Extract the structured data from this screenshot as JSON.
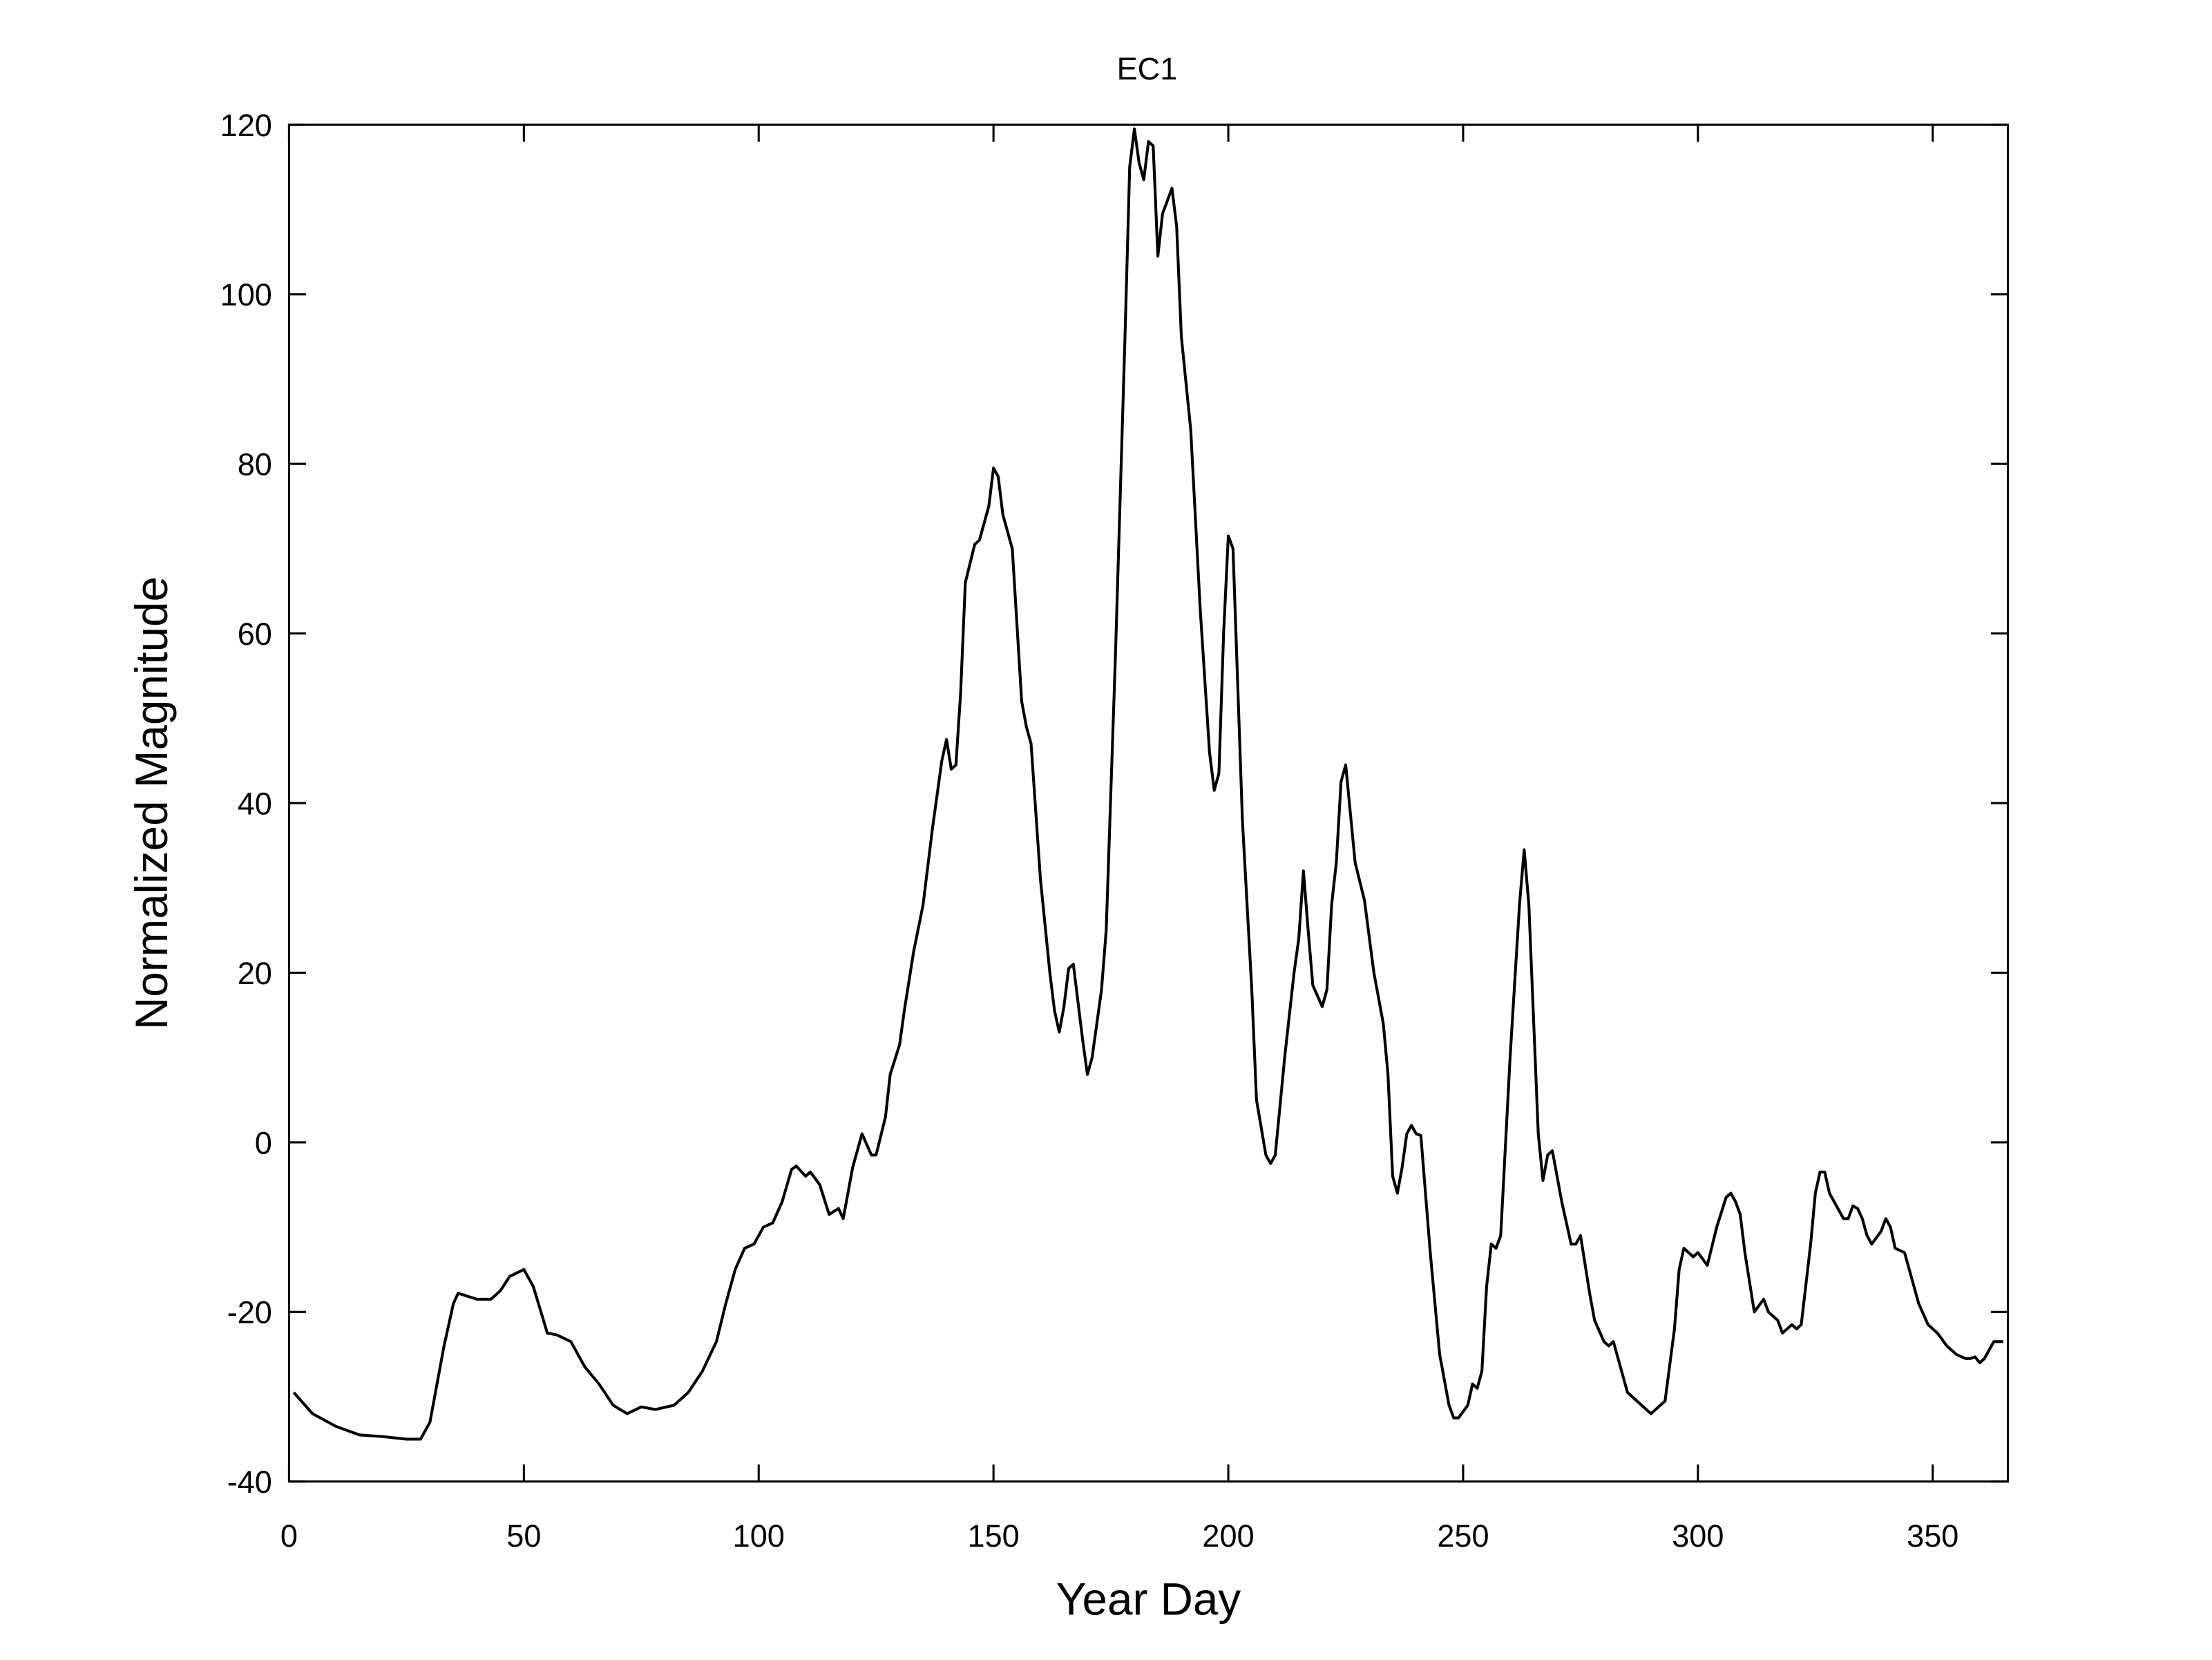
{
  "chart_data": {
    "type": "line",
    "title": "EC1",
    "x_label": "Year Day",
    "y_label": "Normalized Magnitude",
    "xlim": [
      0,
      366
    ],
    "ylim": [
      -40,
      120
    ],
    "xticks": [
      0,
      50,
      100,
      150,
      200,
      250,
      300,
      350
    ],
    "yticks": [
      -40,
      -20,
      0,
      20,
      40,
      60,
      80,
      100,
      120
    ],
    "x": [
      1,
      5,
      10,
      15,
      20,
      25,
      28,
      30,
      33,
      35,
      36,
      40,
      43,
      45,
      47,
      50,
      52,
      55,
      57,
      60,
      63,
      66,
      69,
      72,
      75,
      78,
      82,
      85,
      88,
      91,
      93,
      95,
      97,
      99,
      101,
      103,
      105,
      107,
      108,
      110,
      111,
      113,
      115,
      117,
      118,
      120,
      122,
      124,
      125,
      127,
      128,
      130,
      131,
      133,
      135,
      137,
      139,
      140,
      141,
      142,
      143,
      144,
      146,
      147,
      149,
      150,
      151,
      152,
      154,
      156,
      157,
      158,
      160,
      162,
      163,
      164,
      165,
      166,
      167,
      169,
      170,
      171,
      173,
      174,
      176,
      178,
      179,
      180,
      181,
      182,
      183,
      184,
      185,
      186,
      188,
      189,
      190,
      192,
      194,
      196,
      197,
      198,
      199,
      200,
      201,
      203,
      205,
      206,
      208,
      209,
      210,
      212,
      214,
      215,
      216,
      217,
      218,
      220,
      221,
      222,
      223,
      224,
      225,
      227,
      229,
      231,
      233,
      234,
      235,
      236,
      237,
      238,
      239,
      240,
      241,
      243,
      245,
      247,
      248,
      249,
      251,
      252,
      253,
      254,
      255,
      256,
      257,
      258,
      260,
      262,
      263,
      264,
      266,
      267,
      268,
      269,
      271,
      273,
      274,
      275,
      277,
      278,
      280,
      281,
      282,
      284,
      285,
      287,
      289,
      290,
      291,
      293,
      295,
      296,
      297,
      299,
      300,
      302,
      304,
      306,
      307,
      308,
      309,
      310,
      312,
      314,
      315,
      317,
      318,
      320,
      321,
      322,
      324,
      325,
      326,
      327,
      328,
      330,
      331,
      332,
      333,
      334,
      335,
      336,
      337,
      339,
      340,
      341,
      342,
      344,
      345,
      347,
      349,
      351,
      353,
      355,
      357,
      358,
      359,
      360,
      361,
      363,
      365
    ],
    "series": [
      {
        "color": "#000000",
        "values": [
          -29.5,
          -32,
          -33.5,
          -34.5,
          -34.7,
          -35,
          -35,
          -33,
          -24,
          -19,
          -17.8,
          -18.5,
          -18.5,
          -17.5,
          -15.8,
          -15,
          -17,
          -22.5,
          -22.7,
          -23.5,
          -26.5,
          -28.5,
          -31,
          -32,
          -31.2,
          -31.5,
          -31,
          -29.5,
          -27,
          -23.5,
          -19,
          -15,
          -12.5,
          -12,
          -10,
          -9.5,
          -7,
          -3.2,
          -2.8,
          -4,
          -3.5,
          -5,
          -8.5,
          -7.8,
          -9,
          -3,
          1,
          -1.5,
          -1.5,
          3,
          8,
          11.5,
          15.5,
          22.5,
          28,
          37,
          45,
          47.5,
          44,
          44.5,
          53,
          66,
          70.5,
          71,
          75,
          79.5,
          78.5,
          74,
          70,
          52,
          49,
          47,
          31,
          20,
          15.5,
          13,
          16,
          20.5,
          21,
          12,
          8,
          10,
          18,
          25,
          58,
          95,
          115,
          119.5,
          115.5,
          113.5,
          118,
          117.5,
          104.5,
          109.5,
          112.5,
          108,
          95,
          84,
          63,
          46,
          41.5,
          43.5,
          60,
          71.5,
          70,
          38,
          18,
          5,
          -1.5,
          -2.5,
          -1.5,
          10,
          20,
          24,
          32,
          25,
          18.5,
          16,
          18,
          28,
          33,
          42.5,
          44.5,
          33,
          28.5,
          20,
          14,
          8,
          -4,
          -6,
          -3,
          1,
          2,
          1,
          0.8,
          -13,
          -25,
          -31,
          -32.5,
          -32.5,
          -31,
          -28.5,
          -29,
          -27,
          -17,
          -12,
          -12.5,
          -11,
          10,
          28,
          34.5,
          28,
          1,
          -4.5,
          -1.5,
          -1,
          -7,
          -12,
          -12,
          -11,
          -18,
          -21,
          -23.5,
          -24,
          -23.5,
          -27.5,
          -29.5,
          -30.5,
          -31.5,
          -32,
          -31.5,
          -30.5,
          -22,
          -15,
          -12.5,
          -13.5,
          -13,
          -14.5,
          -10,
          -6.5,
          -6,
          -7,
          -8.5,
          -13,
          -20,
          -18.5,
          -20,
          -21,
          -22.5,
          -21.5,
          -22,
          -21.5,
          -12,
          -6,
          -3.5,
          -3.5,
          -6,
          -8,
          -9,
          -9,
          -7.5,
          -7.8,
          -9,
          -11,
          -12,
          -10.5,
          -9,
          -10,
          -12.5,
          -13,
          -15,
          -19,
          -21.5,
          -22.5,
          -24,
          -25,
          -25.5,
          -25.5,
          -25.3,
          -26,
          -25.5,
          -23.5,
          -23.5
        ]
      }
    ]
  }
}
